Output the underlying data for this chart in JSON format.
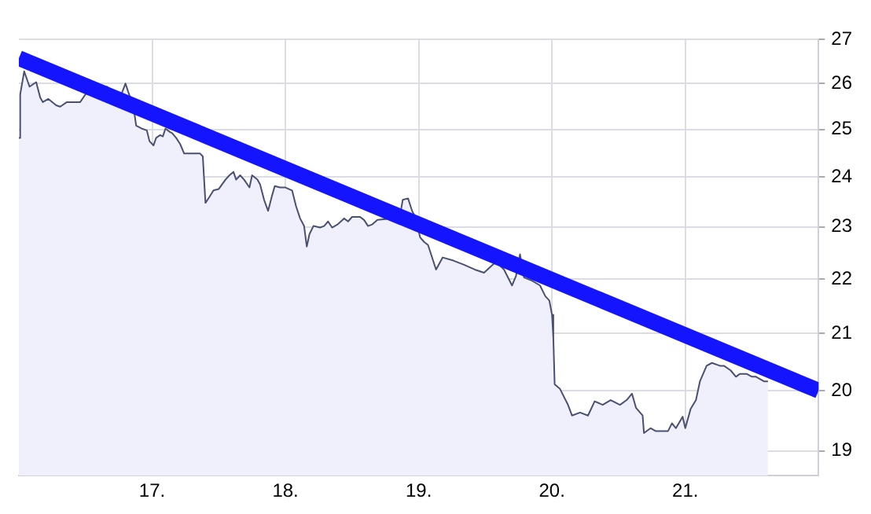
{
  "chart_data": {
    "type": "area",
    "log": "y",
    "grid": true,
    "legend": false,
    "marker": "none",
    "line_style": "solid",
    "xlim": [
      16,
      22
    ],
    "xticks": [
      {
        "value": 17,
        "label": "17."
      },
      {
        "value": 18,
        "label": "18."
      },
      {
        "value": 19,
        "label": "19."
      },
      {
        "value": 20,
        "label": "20."
      },
      {
        "value": 21,
        "label": "21."
      }
    ],
    "ylim": [
      18.6,
      27
    ],
    "yticks": [
      19,
      20,
      21,
      22,
      23,
      24,
      25,
      26,
      27
    ],
    "series": [
      {
        "type": "area",
        "color": "#4a5070",
        "x": [
          16.0,
          16.01,
          16.04,
          16.06,
          16.08,
          16.13,
          16.16,
          16.18,
          16.22,
          16.28,
          16.31,
          16.36,
          16.46,
          16.5,
          16.54,
          16.58,
          16.6,
          16.64,
          16.66,
          16.7,
          16.76,
          16.8,
          16.82,
          16.86,
          16.88,
          16.92,
          16.96,
          16.98,
          17.01,
          17.03,
          17.06,
          17.08,
          17.1,
          17.13,
          17.15,
          17.18,
          17.21,
          17.24,
          17.36,
          17.38,
          17.39,
          17.4,
          17.43,
          17.46,
          17.5,
          17.55,
          17.58,
          17.61,
          17.63,
          17.66,
          17.69,
          17.73,
          17.75,
          17.79,
          17.81,
          17.84,
          17.87,
          17.9,
          17.92,
          17.96,
          18.0,
          18.05,
          18.08,
          18.11,
          18.14,
          18.16,
          18.18,
          18.21,
          18.26,
          18.29,
          18.32,
          18.35,
          18.39,
          18.44,
          18.47,
          18.5,
          18.56,
          18.59,
          18.62,
          18.65,
          18.69,
          18.8,
          18.86,
          18.88,
          18.92,
          18.95,
          18.98,
          19.01,
          19.04,
          19.07,
          19.13,
          19.18,
          19.26,
          19.34,
          19.42,
          19.49,
          19.58,
          19.64,
          19.7,
          19.73,
          19.76,
          19.79,
          19.85,
          19.91,
          19.95,
          19.98,
          20.0,
          20.01,
          20.02,
          20.06,
          20.12,
          20.15,
          20.21,
          20.27,
          20.32,
          20.38,
          20.44,
          20.51,
          20.56,
          20.6,
          20.63,
          20.68,
          20.69,
          20.74,
          20.78,
          20.87,
          20.9,
          20.93,
          20.98,
          21.0,
          21.04,
          21.08,
          21.11,
          21.16,
          21.2,
          21.26,
          21.29,
          21.34,
          21.38,
          21.41,
          21.46,
          21.5,
          21.53,
          21.59,
          21.62
        ],
        "values": [
          24.82,
          25.76,
          26.27,
          26.1,
          25.93,
          26.03,
          25.69,
          25.59,
          25.66,
          25.52,
          25.49,
          25.59,
          25.59,
          25.76,
          25.86,
          25.76,
          25.69,
          25.82,
          25.93,
          25.82,
          25.69,
          26.0,
          25.82,
          25.49,
          25.08,
          25.02,
          24.98,
          24.75,
          24.66,
          24.82,
          24.88,
          24.85,
          25.02,
          24.95,
          24.92,
          24.82,
          24.69,
          24.49,
          24.49,
          24.43,
          23.95,
          23.48,
          23.6,
          23.73,
          23.76,
          23.95,
          24.04,
          24.11,
          23.95,
          24.04,
          23.95,
          23.79,
          24.04,
          23.95,
          23.85,
          23.54,
          23.32,
          23.63,
          23.82,
          23.79,
          23.79,
          23.73,
          23.41,
          23.17,
          23.02,
          22.62,
          22.86,
          23.02,
          22.99,
          23.02,
          23.11,
          22.99,
          23.05,
          23.17,
          23.11,
          23.2,
          23.2,
          23.14,
          23.02,
          23.05,
          23.14,
          23.17,
          23.23,
          23.54,
          23.57,
          23.32,
          23.17,
          22.8,
          22.71,
          22.65,
          22.18,
          22.41,
          22.35,
          22.27,
          22.18,
          22.12,
          22.33,
          22.18,
          21.88,
          22.06,
          22.47,
          22.03,
          21.97,
          21.88,
          21.68,
          21.6,
          21.34,
          20.92,
          20.11,
          20.03,
          19.76,
          19.58,
          19.63,
          19.58,
          19.82,
          19.76,
          19.84,
          19.76,
          19.84,
          19.95,
          19.71,
          19.58,
          19.29,
          19.37,
          19.32,
          19.32,
          19.45,
          19.37,
          19.56,
          19.37,
          19.69,
          19.84,
          20.16,
          20.43,
          20.48,
          20.43,
          20.43,
          20.35,
          20.24,
          20.29,
          20.29,
          20.24,
          20.24,
          20.16,
          20.16
        ]
      },
      {
        "type": "line",
        "color": "#1414ff",
        "x": [
          16,
          22
        ],
        "values": [
          26.57,
          20.0
        ]
      }
    ]
  }
}
